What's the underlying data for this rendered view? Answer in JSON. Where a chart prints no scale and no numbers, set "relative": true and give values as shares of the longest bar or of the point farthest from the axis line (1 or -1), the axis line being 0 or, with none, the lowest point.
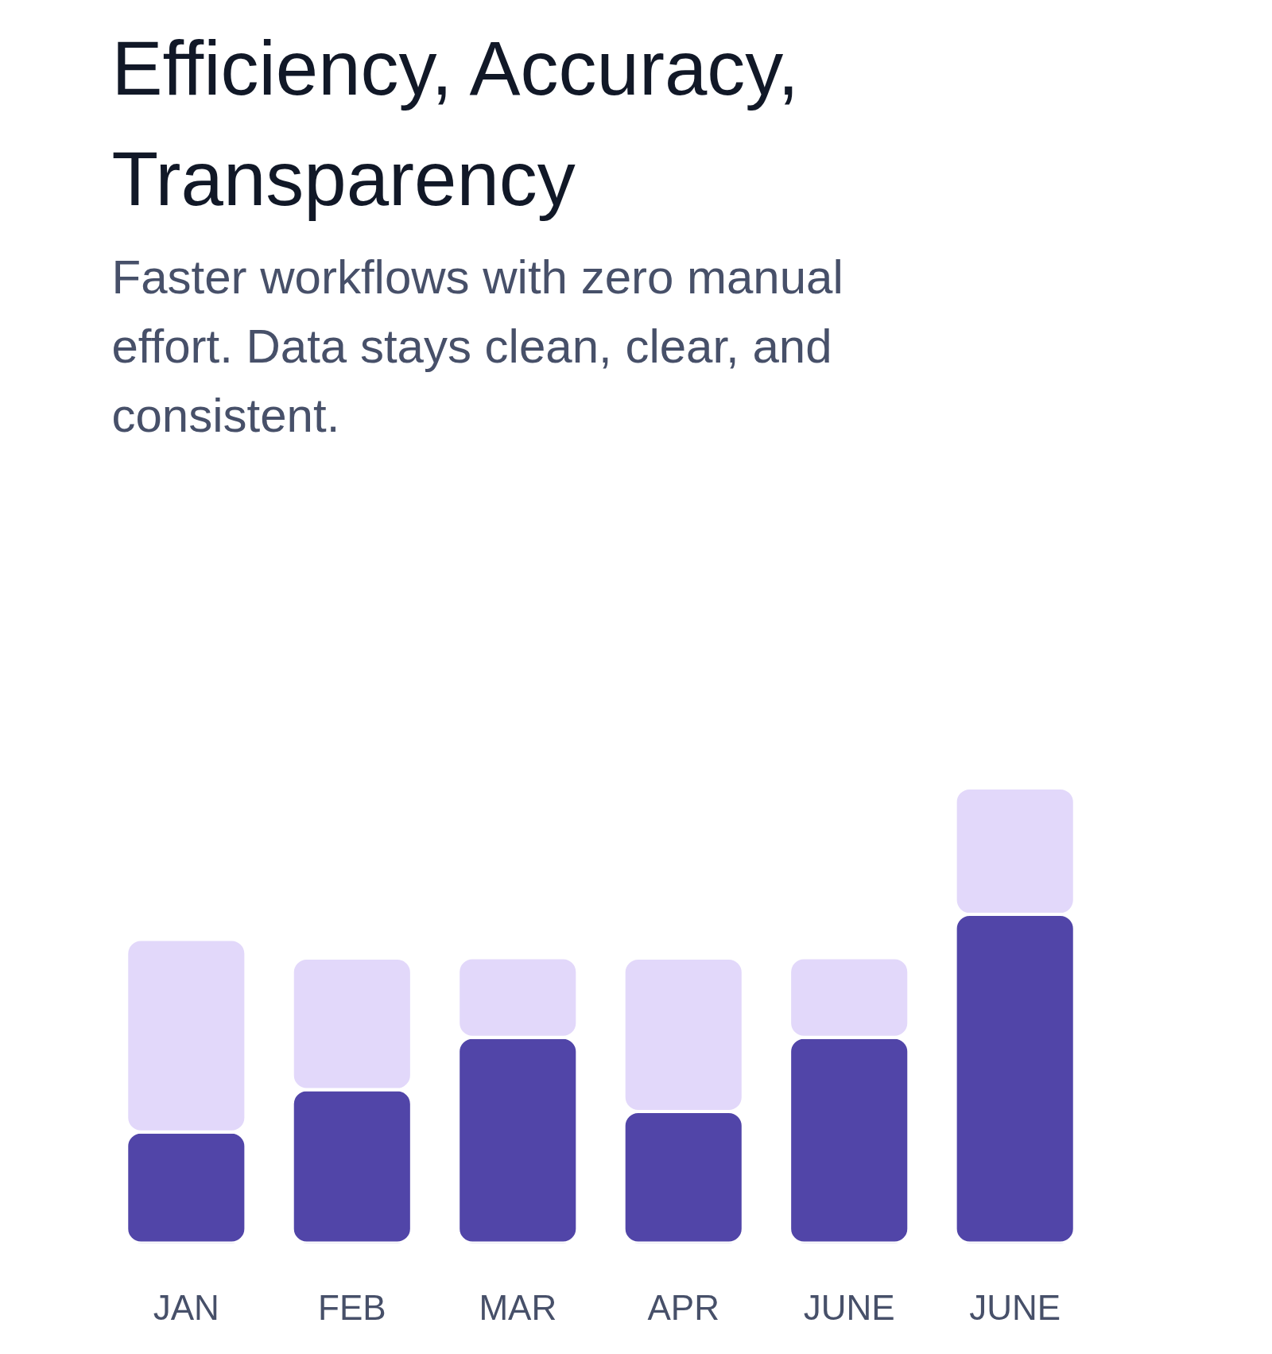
{
  "chart_data": {
    "type": "bar",
    "title": "Efficiency, Accuracy, Transparency",
    "subtitle": "Faster workflows with zero manual effort. Data stays clean, clear, and consistent.",
    "categories": [
      "JAN",
      "FEB",
      "MAR",
      "APR",
      "JUNE",
      "JUNE"
    ],
    "relative": true,
    "stacked": true,
    "series": [
      {
        "color": "#5145a8",
        "values": [
          0.244,
          0.337,
          0.452,
          0.289,
          0.452,
          0.722
        ]
      },
      {
        "color": "#e2d8fa",
        "values": [
          0.423,
          0.289,
          0.175,
          0.337,
          0.175,
          0.278
        ]
      }
    ]
  }
}
